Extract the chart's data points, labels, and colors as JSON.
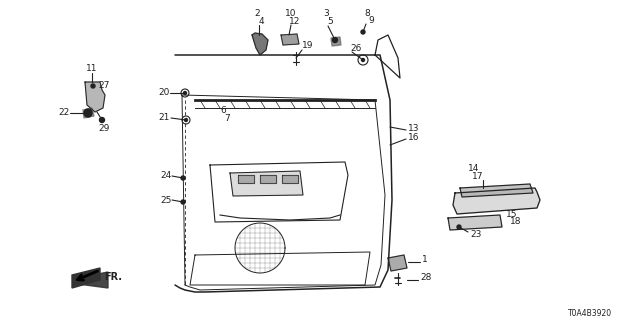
{
  "bg_color": "#ffffff",
  "diagram_id": "T0A4B3920",
  "fig_width": 6.4,
  "fig_height": 3.2,
  "dpi": 100,
  "color": "#222222",
  "fs": 6.5
}
